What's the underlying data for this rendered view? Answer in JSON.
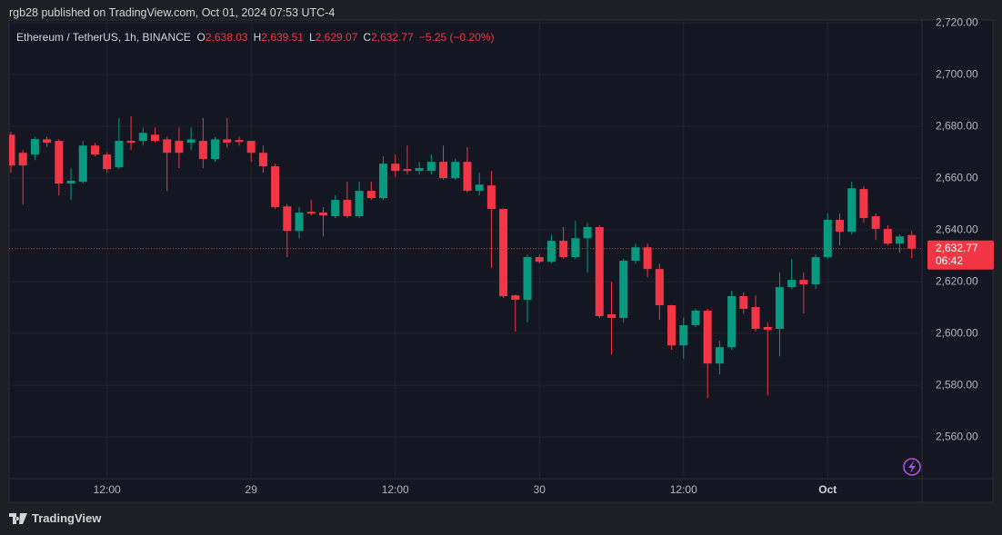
{
  "published": "rgb28 published on TradingView.com, Oct 01, 2024 07:53 UTC-4",
  "footer_brand": "TradingView",
  "chart_data": {
    "type": "candlestick",
    "title": "Ethereum / TetherUS, 1h, BINANCE",
    "ohlc_legend": [
      {
        "key": "O",
        "label": "2,638.03"
      },
      {
        "key": "H",
        "label": "2,639.51"
      },
      {
        "key": "L",
        "label": "2,629.07"
      },
      {
        "key": "C",
        "label": "2,632.77"
      }
    ],
    "change_label": "−5.25 (−0.20%)",
    "last_price_label": "2,632.77",
    "countdown": "06:42",
    "categories": [
      null,
      null,
      null,
      null,
      null,
      null,
      null,
      null,
      "12:00",
      null,
      null,
      null,
      null,
      null,
      null,
      null,
      null,
      null,
      null,
      null,
      "29",
      null,
      null,
      null,
      null,
      null,
      null,
      null,
      null,
      null,
      null,
      null,
      "12:00",
      null,
      null,
      null,
      null,
      null,
      null,
      null,
      null,
      null,
      null,
      null,
      "30",
      null,
      null,
      null,
      null,
      null,
      null,
      null,
      null,
      null,
      null,
      null,
      "12:00",
      null,
      null,
      null,
      null,
      null,
      null,
      null,
      null,
      null,
      null,
      null,
      "Oct",
      null,
      null,
      null,
      null,
      null,
      null,
      null
    ],
    "open": [
      2676.8,
      2669.8,
      2669.1,
      2675.0,
      2674.4,
      2657.9,
      2658.6,
      2672.6,
      2669.1,
      2664.2,
      2674.4,
      2674.4,
      2676.8,
      2675.0,
      2674.4,
      2673.7,
      2674.4,
      2667.4,
      2675.0,
      2674.7,
      2674.4,
      2669.8,
      2664.6,
      2649.1,
      2639.6,
      2647.0,
      2646.7,
      2645.3,
      2651.6,
      2645.3,
      2655.1,
      2652.3,
      2665.6,
      2663.5,
      2662.8,
      2662.8,
      2666.3,
      2660.0,
      2666.3,
      2655.1,
      2657.2,
      2648.1,
      2614.7,
      2613.0,
      2629.5,
      2627.7,
      2635.8,
      2629.5,
      2636.8,
      2641.1,
      2607.4,
      2606.0,
      2628.1,
      2633.3,
      2624.9,
      2610.9,
      2595.4,
      2603.2,
      2608.8,
      2588.4,
      2594.7,
      2614.4,
      2610.2,
      2602.5,
      2601.8,
      2617.9,
      2620.7,
      2619.0,
      2629.5,
      2643.9,
      2639.3,
      2655.8,
      2645.3,
      2640.4,
      2634.7,
      2638.03
    ],
    "high": [
      2678.0,
      2671.0,
      2676.0,
      2676.0,
      2675.0,
      2663.9,
      2674.4,
      2673.7,
      2670.0,
      2683.2,
      2683.9,
      2679.6,
      2679.6,
      2676.0,
      2679.6,
      2679.6,
      2683.2,
      2676.0,
      2683.2,
      2676.0,
      2674.4,
      2672.6,
      2665.6,
      2650.0,
      2648.8,
      2651.6,
      2648.8,
      2653.3,
      2658.6,
      2658.6,
      2658.6,
      2668.4,
      2669.1,
      2672.6,
      2666.3,
      2669.1,
      2672.6,
      2667.4,
      2671.9,
      2662.1,
      2662.8,
      2648.4,
      2615.0,
      2630.5,
      2630.5,
      2638.2,
      2641.1,
      2643.5,
      2642.8,
      2641.8,
      2620.0,
      2628.8,
      2634.7,
      2634.7,
      2627.0,
      2611.0,
      2606.0,
      2609.5,
      2609.5,
      2597.2,
      2616.5,
      2615.8,
      2614.7,
      2604.2,
      2623.5,
      2628.8,
      2623.5,
      2630.5,
      2646.3,
      2646.3,
      2658.6,
      2656.8,
      2646.3,
      2641.8,
      2638.2,
      2639.51
    ],
    "low": [
      2662.0,
      2649.8,
      2667.0,
      2672.0,
      2653.3,
      2651.6,
      2658.0,
      2668.4,
      2662.0,
      2663.5,
      2670.9,
      2672.6,
      2673.7,
      2655.1,
      2663.9,
      2670.9,
      2663.9,
      2666.3,
      2671.6,
      2672.6,
      2666.3,
      2662.1,
      2648.1,
      2629.5,
      2636.8,
      2645.6,
      2637.5,
      2644.6,
      2644.6,
      2644.6,
      2651.6,
      2651.6,
      2660.4,
      2661.4,
      2661.4,
      2661.4,
      2659.3,
      2659.3,
      2654.4,
      2653.3,
      2625.3,
      2613.7,
      2600.7,
      2604.2,
      2627.0,
      2627.0,
      2628.8,
      2628.8,
      2623.5,
      2606.0,
      2591.9,
      2604.2,
      2627.0,
      2621.8,
      2605.3,
      2593.7,
      2590.2,
      2602.5,
      2575.1,
      2584.2,
      2593.7,
      2607.7,
      2600.7,
      2576.1,
      2591.2,
      2617.2,
      2607.7,
      2617.2,
      2628.8,
      2634.0,
      2638.2,
      2642.8,
      2636.1,
      2634.0,
      2631.2,
      2629.07
    ],
    "close": [
      2664.9,
      2664.9,
      2675.1,
      2673.7,
      2657.9,
      2659.0,
      2672.6,
      2669.1,
      2663.5,
      2674.4,
      2673.7,
      2677.5,
      2674.4,
      2669.8,
      2669.8,
      2675.0,
      2667.4,
      2675.0,
      2673.7,
      2674.0,
      2669.8,
      2664.6,
      2648.8,
      2639.6,
      2646.7,
      2646.3,
      2645.6,
      2651.6,
      2645.3,
      2655.1,
      2652.3,
      2665.6,
      2662.8,
      2662.8,
      2663.9,
      2666.3,
      2660.0,
      2666.3,
      2655.1,
      2657.5,
      2648.1,
      2614.4,
      2613.0,
      2629.5,
      2627.7,
      2635.8,
      2629.5,
      2636.8,
      2641.1,
      2606.7,
      2606.0,
      2628.1,
      2633.3,
      2624.9,
      2610.9,
      2595.4,
      2603.2,
      2608.8,
      2588.4,
      2594.7,
      2614.4,
      2609.5,
      2601.8,
      2601.4,
      2617.9,
      2620.7,
      2619.0,
      2629.5,
      2643.9,
      2639.3,
      2656.1,
      2644.6,
      2640.4,
      2634.7,
      2637.5,
      2632.77
    ],
    "up_color": "#089981",
    "down_color": "#f23645",
    "ylim": [
      2543.9,
      2721.1
    ],
    "yticks": [
      {
        "value": 2560,
        "label": "2,560.00"
      },
      {
        "value": 2580,
        "label": "2,580.00"
      },
      {
        "value": 2600,
        "label": "2,600.00"
      },
      {
        "value": 2620,
        "label": "2,620.00"
      },
      {
        "value": 2640,
        "label": "2,640.00"
      },
      {
        "value": 2660,
        "label": "2,660.00"
      },
      {
        "value": 2680,
        "label": "2,680.00"
      },
      {
        "value": 2700,
        "label": "2,700.00"
      },
      {
        "value": 2720,
        "label": "2,720.00"
      }
    ],
    "grid": true
  }
}
